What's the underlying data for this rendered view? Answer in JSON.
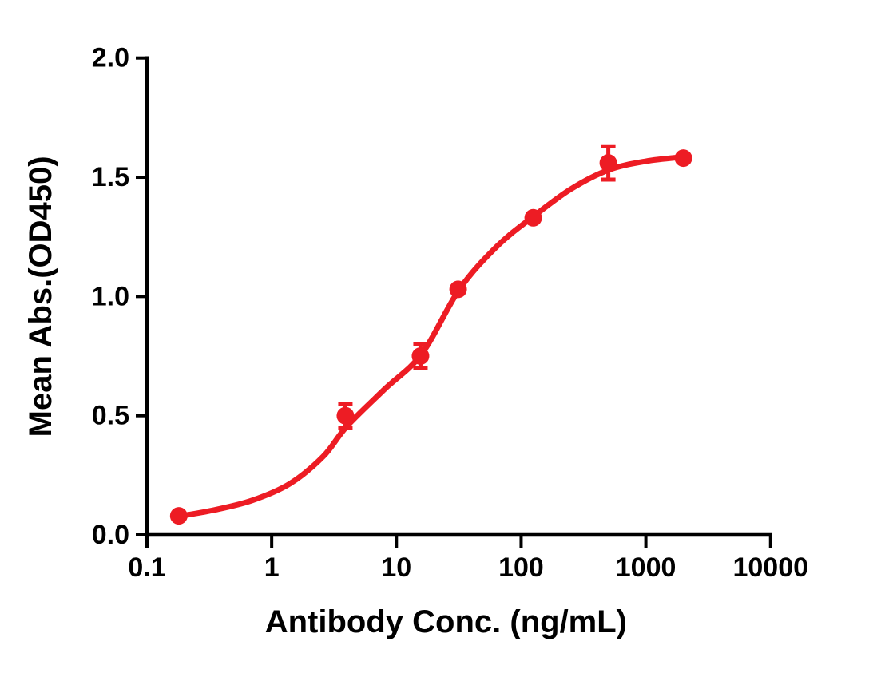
{
  "figure": {
    "background_color": "#ffffff",
    "axis_color": "#000000",
    "accent_color": "#ED1C24"
  },
  "chart_data": {
    "type": "scatter",
    "title": "",
    "xlabel": "Antibody Conc. (ng/mL)",
    "ylabel": "Mean Abs.(OD450)",
    "grid": false,
    "legend_position": "none",
    "x_axis": {
      "scale": "log10",
      "range": [
        0.1,
        10000
      ],
      "ticks": [
        0.1,
        1,
        10,
        100,
        1000,
        10000
      ],
      "tick_labels": [
        "0.1",
        "1",
        "10",
        "100",
        "1000",
        "10000"
      ]
    },
    "y_axis": {
      "scale": "linear",
      "range": [
        0.0,
        2.0
      ],
      "ticks": [
        0.0,
        0.5,
        1.0,
        1.5,
        2.0
      ],
      "tick_labels": [
        "0.0",
        "0.5",
        "1.0",
        "1.5",
        "2.0"
      ]
    },
    "series": [
      {
        "color": "#ED1C24",
        "marker": "circle",
        "marker_radius_px": 11,
        "points": [
          {
            "x": 0.18,
            "y": 0.08,
            "yerr": null
          },
          {
            "x": 3.9,
            "y": 0.5,
            "yerr": 0.05
          },
          {
            "x": 15.6,
            "y": 0.75,
            "yerr": 0.05
          },
          {
            "x": 31.25,
            "y": 1.03,
            "yerr": null
          },
          {
            "x": 125,
            "y": 1.33,
            "yerr": null
          },
          {
            "x": 500,
            "y": 1.56,
            "yerr": 0.07
          },
          {
            "x": 2000,
            "y": 1.58,
            "yerr": null
          }
        ],
        "fit_curve_points": [
          {
            "x": 0.18,
            "y": 0.078
          },
          {
            "x": 0.35,
            "y": 0.105
          },
          {
            "x": 0.7,
            "y": 0.145
          },
          {
            "x": 1.4,
            "y": 0.215
          },
          {
            "x": 2.6,
            "y": 0.33
          },
          {
            "x": 4,
            "y": 0.455
          },
          {
            "x": 8,
            "y": 0.61
          },
          {
            "x": 16,
            "y": 0.76
          },
          {
            "x": 32,
            "y": 1.03
          },
          {
            "x": 64,
            "y": 1.21
          },
          {
            "x": 125,
            "y": 1.335
          },
          {
            "x": 250,
            "y": 1.45
          },
          {
            "x": 500,
            "y": 1.53
          },
          {
            "x": 1000,
            "y": 1.567
          },
          {
            "x": 2000,
            "y": 1.585
          }
        ]
      }
    ]
  }
}
